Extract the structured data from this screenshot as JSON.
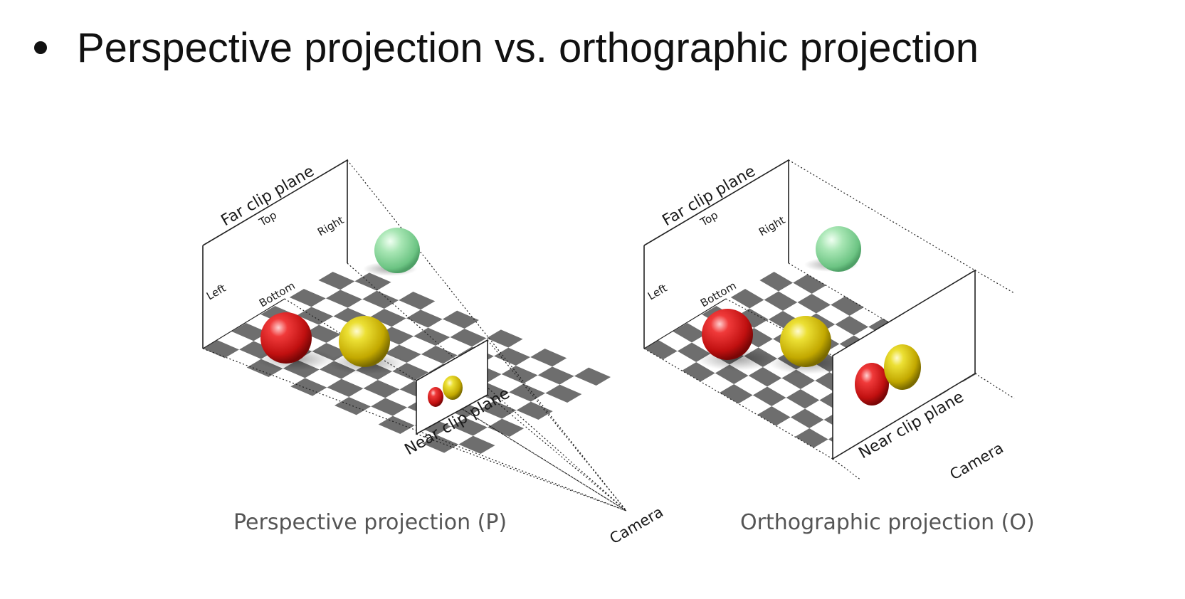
{
  "slide": {
    "title": "Perspective projection vs. orthographic projection"
  },
  "perspective": {
    "caption": "Perspective projection (P)",
    "far_plane": "Far clip plane",
    "top": "Top",
    "right": "Right",
    "left": "Left",
    "bottom": "Bottom",
    "near_plane": "Near clip plane",
    "camera": "Camera"
  },
  "orthographic": {
    "caption": "Orthographic projection (O)",
    "far_plane": "Far clip plane",
    "top": "Top",
    "right": "Right",
    "left": "Left",
    "bottom": "Bottom",
    "near_plane": "Near clip plane",
    "camera": "Camera"
  },
  "colors": {
    "red_sphere": "#e02020",
    "yellow_sphere": "#d8c400",
    "green_sphere": "#8fdca0",
    "checker_dark": "#6e6e6e",
    "checker_light": "#ffffff"
  }
}
